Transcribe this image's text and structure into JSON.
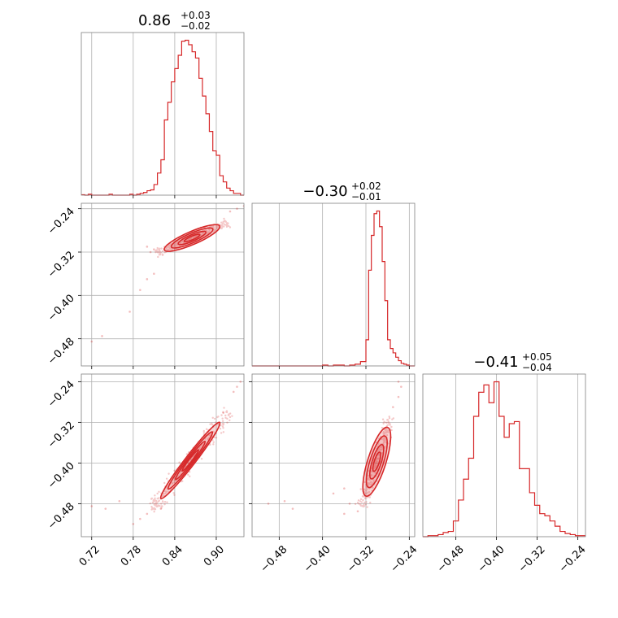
{
  "chart_data": {
    "type": "corner",
    "color": "#d62728",
    "grid": true,
    "parameters": [
      {
        "id": "p0",
        "title_median": "0.86",
        "title_plus": "+0.03",
        "title_minus": "−0.02",
        "range": [
          0.705,
          0.94
        ],
        "ticks": [
          0.72,
          0.78,
          0.84,
          0.9
        ],
        "tick_labels": [
          "0.72",
          "0.78",
          "0.84",
          "0.90"
        ],
        "hist": {
          "bins": [
            0.705,
            0.71,
            0.715,
            0.72,
            0.725,
            0.73,
            0.735,
            0.74,
            0.745,
            0.75,
            0.755,
            0.76,
            0.765,
            0.77,
            0.775,
            0.78,
            0.785,
            0.79,
            0.795,
            0.8,
            0.805,
            0.81,
            0.815,
            0.82,
            0.825,
            0.83,
            0.835,
            0.84,
            0.845,
            0.85,
            0.855,
            0.86,
            0.865,
            0.87,
            0.875,
            0.88,
            0.885,
            0.89,
            0.895,
            0.9,
            0.905,
            0.91,
            0.915,
            0.92,
            0.925,
            0.93,
            0.935,
            0.94
          ],
          "counts": [
            0.5,
            0,
            1,
            0,
            0,
            0,
            0,
            0,
            1,
            0,
            0,
            0,
            0,
            0,
            1,
            0,
            1,
            2,
            3,
            5,
            6,
            12,
            25,
            40,
            85,
            105,
            128,
            143,
            158,
            174,
            175,
            170,
            162,
            155,
            132,
            112,
            92,
            72,
            50,
            45,
            22,
            15,
            8,
            5,
            2,
            2,
            0
          ]
        }
      },
      {
        "id": "p1",
        "title_median": "−0.30",
        "title_plus": "+0.02",
        "title_minus": "−0.01",
        "range": [
          -0.53,
          -0.23
        ],
        "ticks": [
          -0.48,
          -0.4,
          -0.32,
          -0.24
        ],
        "tick_labels": [
          "−0.48",
          "−0.40",
          "−0.32",
          "−0.24"
        ],
        "hist": {
          "bins": [
            -0.53,
            -0.52,
            -0.51,
            -0.5,
            -0.49,
            -0.48,
            -0.47,
            -0.46,
            -0.45,
            -0.44,
            -0.43,
            -0.42,
            -0.41,
            -0.4,
            -0.39,
            -0.38,
            -0.37,
            -0.36,
            -0.35,
            -0.34,
            -0.33,
            -0.32,
            -0.315,
            -0.31,
            -0.305,
            -0.3,
            -0.295,
            -0.29,
            -0.285,
            -0.28,
            -0.275,
            -0.27,
            -0.265,
            -0.26,
            -0.255,
            -0.25,
            -0.245,
            -0.24,
            -0.235,
            -0.23
          ],
          "counts": [
            0,
            0,
            0,
            0,
            0,
            0,
            0,
            0,
            0,
            0,
            0,
            0,
            0,
            1,
            0,
            1,
            1,
            0,
            1,
            2,
            5,
            30,
            110,
            150,
            175,
            178,
            160,
            120,
            75,
            30,
            20,
            15,
            10,
            6,
            3,
            2,
            1,
            0,
            0
          ]
        }
      },
      {
        "id": "p2",
        "title_median": "−0.41",
        "title_plus": "+0.05",
        "title_minus": "−0.04",
        "range": [
          -0.545,
          -0.225
        ],
        "ticks": [
          -0.48,
          -0.4,
          -0.32,
          -0.24
        ],
        "tick_labels": [
          "−0.48",
          "−0.40",
          "−0.32",
          "−0.24"
        ],
        "hist": {
          "bins": [
            -0.545,
            -0.535,
            -0.525,
            -0.515,
            -0.505,
            -0.495,
            -0.485,
            -0.475,
            -0.465,
            -0.455,
            -0.445,
            -0.435,
            -0.425,
            -0.415,
            -0.405,
            -0.395,
            -0.385,
            -0.375,
            -0.365,
            -0.355,
            -0.345,
            -0.335,
            -0.325,
            -0.315,
            -0.305,
            -0.295,
            -0.285,
            -0.275,
            -0.265,
            -0.255,
            -0.245,
            -0.235,
            -0.225
          ],
          "counts": [
            0,
            1,
            1,
            2,
            4,
            5,
            15,
            35,
            55,
            75,
            115,
            138,
            145,
            128,
            148,
            115,
            95,
            108,
            110,
            65,
            65,
            42,
            30,
            22,
            20,
            15,
            10,
            5,
            3,
            2,
            1,
            1
          ]
        }
      }
    ],
    "scatter_pairs": [
      {
        "row": 1,
        "col": 0,
        "contour_line": [
          [
            0.825,
            -0.316
          ],
          [
            0.905,
            -0.272
          ]
        ],
        "contour_half_width": 0.012,
        "outliers": [
          [
            0.72,
            -0.485
          ],
          [
            0.735,
            -0.475
          ],
          [
            0.775,
            -0.43
          ],
          [
            0.8,
            -0.37
          ],
          [
            0.81,
            -0.36
          ],
          [
            0.79,
            -0.39
          ],
          [
            0.94,
            -0.235
          ],
          [
            0.93,
            -0.24
          ],
          [
            0.92,
            -0.245
          ],
          [
            0.8,
            -0.31
          ],
          [
            0.805,
            -0.32
          ],
          [
            0.81,
            -0.315
          ]
        ]
      },
      {
        "row": 2,
        "col": 0,
        "contour_line": [
          [
            0.82,
            -0.47
          ],
          [
            0.905,
            -0.32
          ]
        ],
        "contour_half_width": 0.01,
        "outliers": [
          [
            0.72,
            -0.485
          ],
          [
            0.74,
            -0.49
          ],
          [
            0.78,
            -0.52
          ],
          [
            0.79,
            -0.51
          ],
          [
            0.8,
            -0.5
          ],
          [
            0.82,
            -0.49
          ],
          [
            0.925,
            -0.26
          ],
          [
            0.93,
            -0.25
          ],
          [
            0.935,
            -0.24
          ],
          [
            0.91,
            -0.3
          ],
          [
            0.76,
            -0.475
          ]
        ]
      },
      {
        "row": 2,
        "col": 1,
        "contour_line": [
          [
            -0.32,
            -0.465
          ],
          [
            -0.28,
            -0.33
          ]
        ],
        "contour_half_width": 0.018,
        "outliers": [
          [
            -0.5,
            -0.48
          ],
          [
            -0.47,
            -0.475
          ],
          [
            -0.455,
            -0.49
          ],
          [
            -0.38,
            -0.46
          ],
          [
            -0.36,
            -0.45
          ],
          [
            -0.36,
            -0.5
          ],
          [
            -0.35,
            -0.48
          ],
          [
            -0.27,
            -0.29
          ],
          [
            -0.26,
            -0.27
          ],
          [
            -0.255,
            -0.25
          ],
          [
            -0.26,
            -0.24
          ],
          [
            -0.335,
            -0.495
          ]
        ]
      }
    ]
  }
}
